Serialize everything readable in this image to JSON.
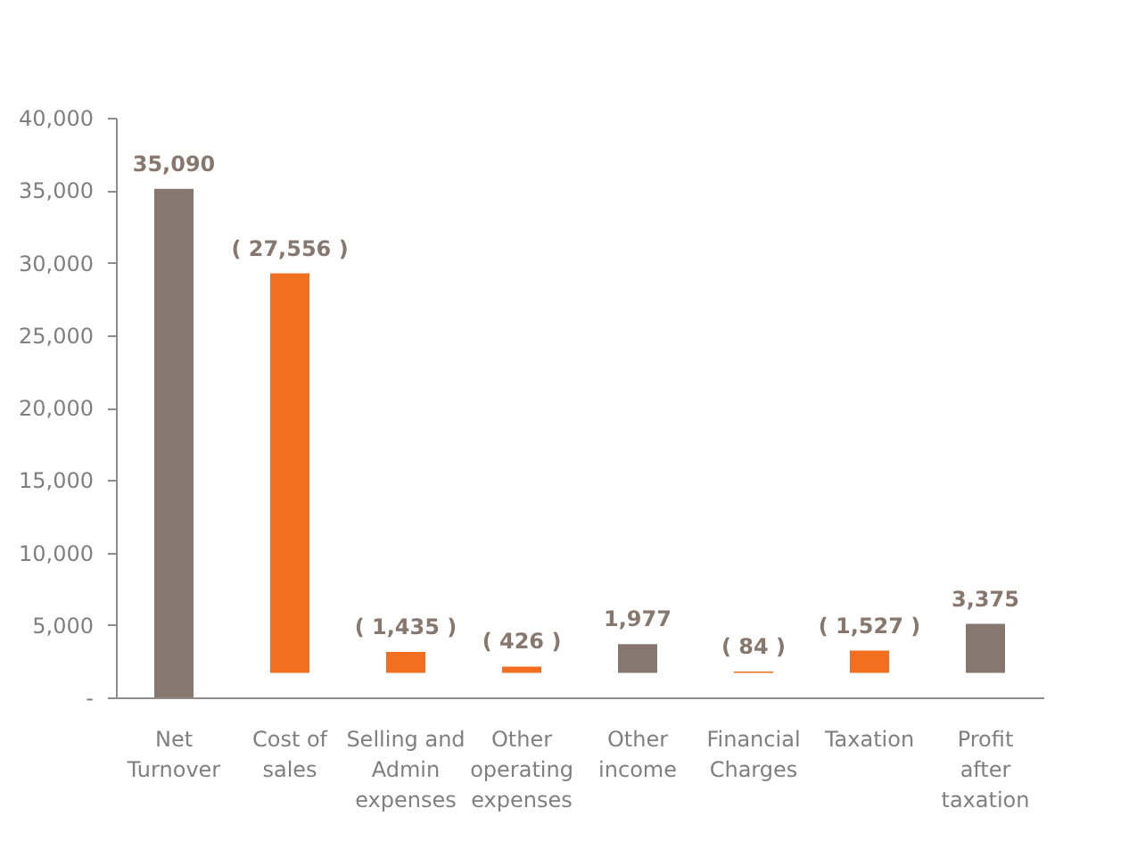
{
  "chart_data": {
    "type": "bar",
    "categories": [
      "Net Turnover",
      "Cost of sales",
      "Selling and Admin expenses",
      "Other operating expenses",
      "Other income",
      "Financial Charges",
      "Taxation",
      "Profit after taxation"
    ],
    "values": [
      35090,
      27556,
      1435,
      426,
      1977,
      84,
      1527,
      3375
    ],
    "base": [
      0,
      1700,
      1700,
      1700,
      1700,
      1700,
      1700,
      1700
    ],
    "colors": [
      "#86786f",
      "#f26f21",
      "#f26f21",
      "#f26f21",
      "#86786f",
      "#f26f21",
      "#f26f21",
      "#86786f"
    ],
    "value_labels": [
      "35,090",
      "( 27,556 )",
      "( 1,435 )",
      "( 426 )",
      "1,977",
      "( 84 )",
      "( 1,527 )",
      "3,375"
    ],
    "ylim": [
      0,
      40000
    ],
    "yticks": [
      {
        "value": 0,
        "label": "-"
      },
      {
        "value": 5000,
        "label": "5,000"
      },
      {
        "value": 10000,
        "label": "10,000"
      },
      {
        "value": 15000,
        "label": "15,000"
      },
      {
        "value": 20000,
        "label": "20,000"
      },
      {
        "value": 25000,
        "label": "25,000"
      },
      {
        "value": 30000,
        "label": "30,000"
      },
      {
        "value": 35000,
        "label": "35,000"
      },
      {
        "value": 40000,
        "label": "40,000"
      }
    ],
    "grid": false
  }
}
